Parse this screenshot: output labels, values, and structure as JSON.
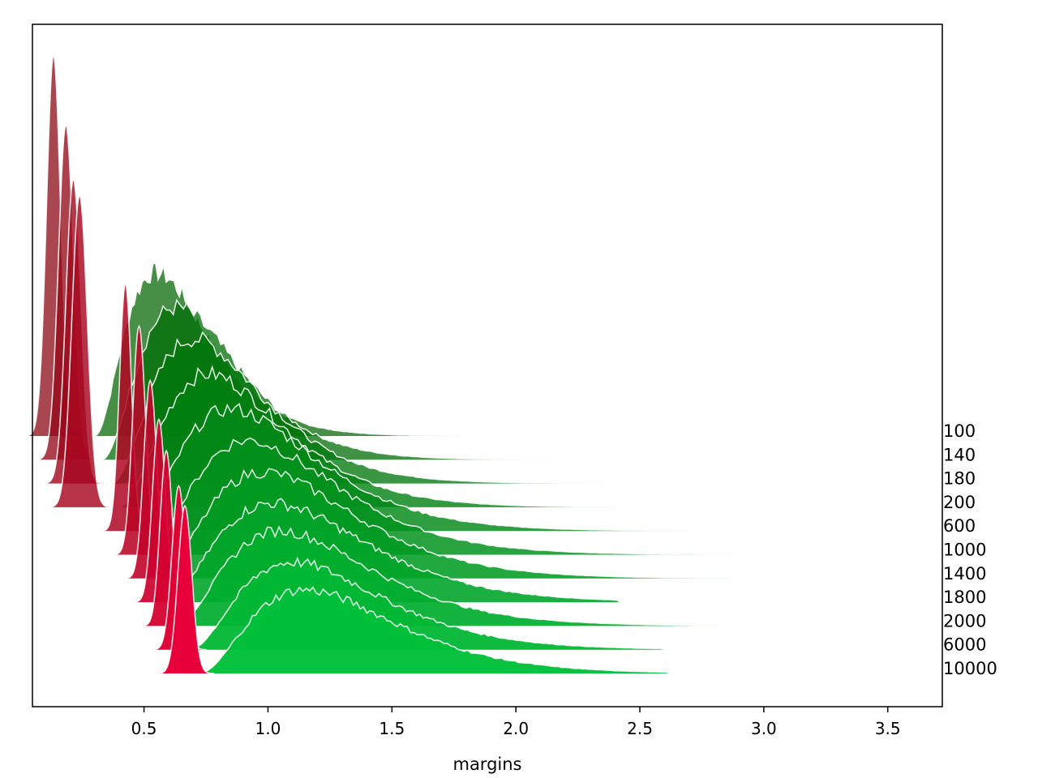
{
  "chart_data": {
    "type": "area",
    "subtype": "ridgeline",
    "title": "",
    "xlabel": "margins",
    "ylabel": "",
    "xlim": [
      0.05,
      3.72
    ],
    "x_ticks": [
      {
        "value": 0.5,
        "label": "0.5"
      },
      {
        "value": 1.0,
        "label": "1.0"
      },
      {
        "value": 1.5,
        "label": "1.5"
      },
      {
        "value": 2.0,
        "label": "2.0"
      },
      {
        "value": 2.5,
        "label": "2.5"
      },
      {
        "value": 3.0,
        "label": "3.0"
      },
      {
        "value": 3.5,
        "label": "3.5"
      }
    ],
    "grid": false,
    "legend": "none",
    "row_labels": [
      "100",
      "140",
      "180",
      "200",
      "600",
      "1000",
      "1400",
      "1800",
      "2000",
      "6000",
      "10000"
    ],
    "series_colors": {
      "red_dark": "#8b0a14",
      "red_bright": "#e8003a",
      "green_dark": "#006400",
      "green_bright": "#00c03a",
      "outline": "#ffffff"
    },
    "series": [
      {
        "row": "100",
        "kind": "red",
        "center": 0.135,
        "sd": 0.028,
        "peak": 1.0
      },
      {
        "row": "140",
        "kind": "red",
        "center": 0.185,
        "sd": 0.03,
        "peak": 0.88
      },
      {
        "row": "180",
        "kind": "red",
        "center": 0.215,
        "sd": 0.03,
        "peak": 0.8
      },
      {
        "row": "200",
        "kind": "red",
        "center": 0.24,
        "sd": 0.031,
        "peak": 0.82
      },
      {
        "row": "600",
        "kind": "red",
        "center": 0.425,
        "sd": 0.024,
        "peak": 0.65
      },
      {
        "row": "1000",
        "kind": "red",
        "center": 0.48,
        "sd": 0.026,
        "peak": 0.6
      },
      {
        "row": "1400",
        "kind": "red",
        "center": 0.525,
        "sd": 0.026,
        "peak": 0.52
      },
      {
        "row": "1800",
        "kind": "red",
        "center": 0.56,
        "sd": 0.026,
        "peak": 0.48
      },
      {
        "row": "2000",
        "kind": "red",
        "center": 0.59,
        "sd": 0.025,
        "peak": 0.46
      },
      {
        "row": "6000",
        "kind": "red",
        "center": 0.64,
        "sd": 0.027,
        "peak": 0.43
      },
      {
        "row": "10000",
        "kind": "red",
        "center": 0.665,
        "sd": 0.028,
        "peak": 0.44
      },
      {
        "row": "100",
        "kind": "green",
        "mode": 0.55,
        "start": 0.3,
        "end": 1.8,
        "peak": 0.43
      },
      {
        "row": "140",
        "kind": "green",
        "mode": 0.63,
        "start": 0.33,
        "end": 2.25,
        "peak": 0.4
      },
      {
        "row": "180",
        "kind": "green",
        "mode": 0.7,
        "start": 0.37,
        "end": 2.42,
        "peak": 0.38
      },
      {
        "row": "200",
        "kind": "green",
        "mode": 0.76,
        "start": 0.4,
        "end": 2.42,
        "peak": 0.35
      },
      {
        "row": "600",
        "kind": "green",
        "mode": 0.85,
        "start": 0.45,
        "end": 2.7,
        "peak": 0.32
      },
      {
        "row": "1000",
        "kind": "green",
        "mode": 0.92,
        "start": 0.5,
        "end": 2.9,
        "peak": 0.3
      },
      {
        "row": "1400",
        "kind": "green",
        "mode": 0.98,
        "start": 0.55,
        "end": 2.9,
        "peak": 0.28
      },
      {
        "row": "1800",
        "kind": "green",
        "mode": 1.02,
        "start": 0.58,
        "end": 2.42,
        "peak": 0.26
      },
      {
        "row": "2000",
        "kind": "green",
        "mode": 1.05,
        "start": 0.62,
        "end": 2.82,
        "peak": 0.25
      },
      {
        "row": "6000",
        "kind": "green",
        "mode": 1.1,
        "start": 0.68,
        "end": 2.6,
        "peak": 0.23
      },
      {
        "row": "10000",
        "kind": "green",
        "mode": 1.15,
        "start": 0.72,
        "end": 2.62,
        "peak": 0.22
      }
    ]
  }
}
